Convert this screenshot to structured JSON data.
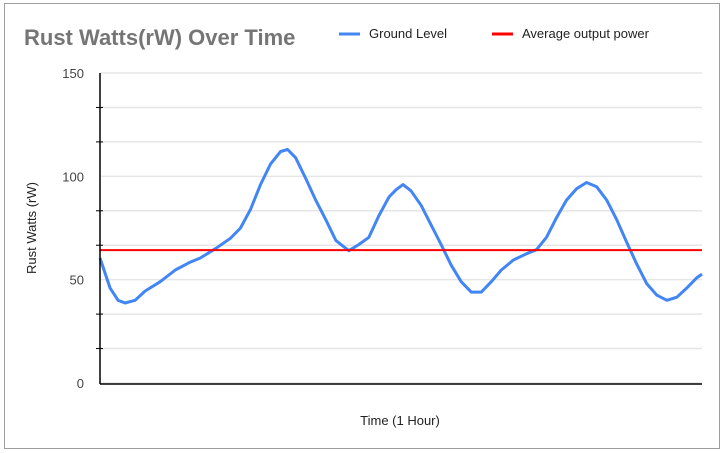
{
  "chart_data": {
    "type": "line",
    "title": "Rust Watts(rW) Over Time",
    "xlabel": "Time (1 Hour)",
    "ylabel": "Rust Watts (rW)",
    "ylim": [
      0,
      150
    ],
    "xlim": [
      0,
      60
    ],
    "yticks": [
      "0",
      "50",
      "100",
      "150"
    ],
    "grid": true,
    "legend_position": "top",
    "series": [
      {
        "name": "Ground Level",
        "color": "#4285f4",
        "x": [
          0,
          1,
          1.8,
          2.5,
          3.5,
          4.5,
          6,
          7.5,
          9,
          10,
          11.5,
          13,
          14,
          15,
          16,
          17,
          18,
          18.7,
          19.5,
          20.5,
          21.5,
          22.5,
          23.5,
          24.8,
          25.8,
          26.8,
          27.8,
          28.8,
          29.5,
          30.2,
          31,
          32,
          33,
          34,
          35,
          36,
          37,
          38,
          39,
          40,
          41.2,
          42.5,
          43.5,
          44.5,
          45.5,
          46.5,
          47.5,
          48.5,
          49.5,
          50.5,
          51.5,
          52.5,
          53.5,
          54.5,
          55.5,
          56.5,
          57.5,
          58.5,
          59.5,
          60
        ],
        "y": [
          60.5,
          46,
          40,
          38.7,
          40,
          44.5,
          49,
          54.7,
          58.5,
          60.5,
          65,
          70,
          75,
          84,
          96,
          106,
          112,
          113,
          109,
          99,
          88.5,
          79,
          69,
          64,
          67,
          70.5,
          81,
          90,
          93.5,
          96,
          93,
          86,
          76.5,
          67,
          57,
          49,
          44,
          44,
          49,
          54.7,
          59.5,
          62.5,
          64.5,
          70.5,
          80,
          88.5,
          94,
          97,
          95,
          88.5,
          79,
          68,
          57.5,
          48,
          42.5,
          40,
          41.5,
          46,
          51,
          52.7
        ]
      },
      {
        "name": "Average output power",
        "color": "#ff0000",
        "x": [
          0,
          60
        ],
        "y": [
          64.3,
          64.3
        ]
      }
    ]
  }
}
